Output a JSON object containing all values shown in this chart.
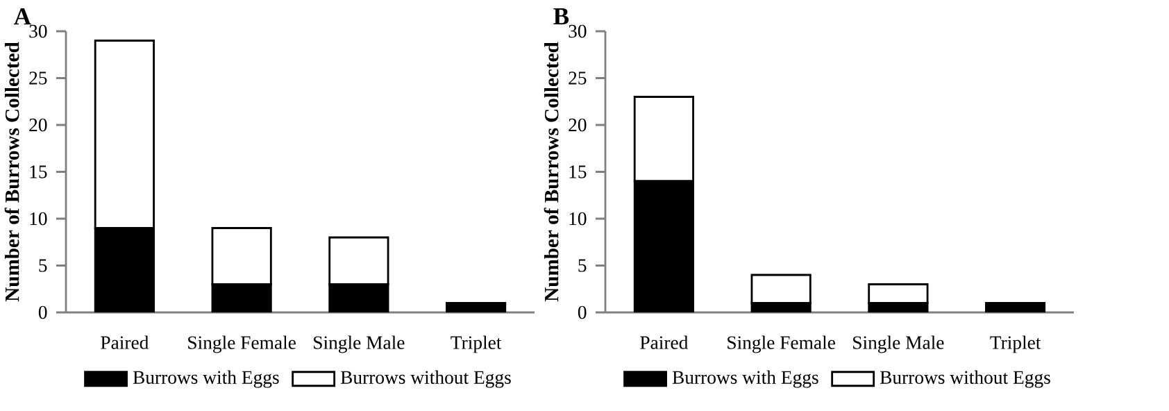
{
  "chart_data": [
    {
      "type": "bar",
      "title": "A",
      "ylabel": "Number of Burrows Collected",
      "categories": [
        "Paired",
        "Single Female",
        "Single Male",
        "Triplet"
      ],
      "stacked": true,
      "ylim": [
        0,
        30
      ],
      "yticks": [
        0,
        5,
        10,
        15,
        20,
        25,
        30
      ],
      "grid": false,
      "legend": "bottom",
      "series": [
        {
          "name": "Burrows with Eggs",
          "color": "#000000",
          "values": [
            9,
            3,
            3,
            1
          ]
        },
        {
          "name": "Burrows without Eggs",
          "color": "#ffffff",
          "values": [
            20,
            6,
            5,
            0
          ]
        }
      ]
    },
    {
      "type": "bar",
      "title": "B",
      "ylabel": "Number of Burrows Collected",
      "categories": [
        "Paired",
        "Single Female",
        "Single Male",
        "Triplet"
      ],
      "stacked": true,
      "ylim": [
        0,
        30
      ],
      "yticks": [
        0,
        5,
        10,
        15,
        20,
        25,
        30
      ],
      "grid": false,
      "legend": "bottom",
      "series": [
        {
          "name": "Burrows with Eggs",
          "color": "#000000",
          "values": [
            14,
            1,
            1,
            1
          ]
        },
        {
          "name": "Burrows without Eggs",
          "color": "#ffffff",
          "values": [
            9,
            3,
            2,
            0
          ]
        }
      ]
    }
  ]
}
